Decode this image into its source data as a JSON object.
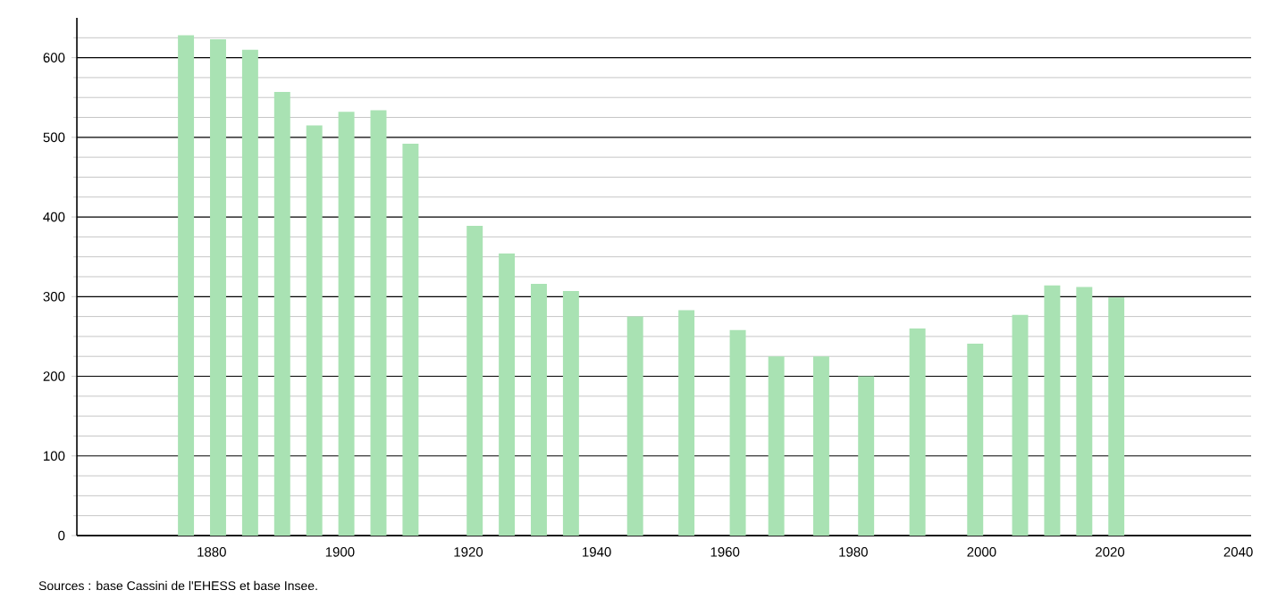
{
  "chart_data": {
    "type": "bar",
    "color": "#a9e2b3",
    "x": [
      1876,
      1881,
      1886,
      1891,
      1896,
      1901,
      1906,
      1911,
      1921,
      1926,
      1931,
      1936,
      1946,
      1954,
      1962,
      1968,
      1975,
      1982,
      1990,
      1999,
      2006,
      2011,
      2016,
      2021
    ],
    "values": [
      628,
      623,
      610,
      557,
      515,
      532,
      534,
      492,
      389,
      354,
      316,
      307,
      275,
      283,
      258,
      225,
      225,
      200,
      260,
      241,
      277,
      314,
      312,
      299
    ],
    "xlim": [
      1859,
      2042
    ],
    "xticks": [
      1880,
      1900,
      1920,
      1940,
      1960,
      1980,
      2000,
      2020,
      2040
    ],
    "ylim": [
      0,
      650
    ],
    "yticks": [
      0,
      {
        "value": 25,
        "label": null
      },
      {
        "value": 50,
        "label": null
      },
      {
        "value": 75,
        "label": null
      },
      100,
      {
        "value": 125,
        "label": null
      },
      {
        "value": 150,
        "label": null
      },
      {
        "value": 175,
        "label": null
      },
      200,
      {
        "value": 225,
        "label": null
      },
      {
        "value": 250,
        "label": null
      },
      {
        "value": 275,
        "label": null
      },
      300,
      {
        "value": 325,
        "label": null
      },
      {
        "value": 350,
        "label": null
      },
      {
        "value": 375,
        "label": null
      },
      400,
      {
        "value": 425,
        "label": null
      },
      {
        "value": 450,
        "label": null
      },
      {
        "value": 475,
        "label": null
      },
      500,
      {
        "value": 525,
        "label": null
      },
      {
        "value": 550,
        "label": null
      },
      {
        "value": 575,
        "label": null
      },
      600,
      {
        "value": 625,
        "label": null
      }
    ],
    "grid": "y",
    "annotations": [
      "Sources : base Cassini de l'EHESS et base Insee."
    ]
  }
}
